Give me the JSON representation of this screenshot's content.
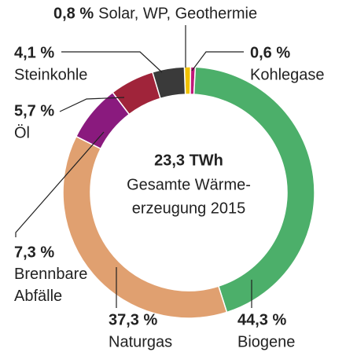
{
  "chart_data": {
    "type": "donut",
    "center_text": [
      "23,3 TWh",
      "Gesamte Wärme-",
      "erzeugung 2015"
    ],
    "categories": [
      "Solar, WP, Geothermie",
      "Kohlegase",
      "Biogene",
      "Naturgas",
      "Brennbare Abfälle",
      "Öl",
      "Steinkohle"
    ],
    "values": [
      0.8,
      0.6,
      44.3,
      37.3,
      7.3,
      5.7,
      4.1
    ],
    "value_labels": [
      "0,8 %",
      "0,6 %",
      "44,3 %",
      "37,3 %",
      "7,3 %",
      "5,7 %",
      "4,1 %"
    ],
    "colors": [
      "#f2c200",
      "#c0187a",
      "#4caf6a",
      "#e0a070",
      "#8a1a7e",
      "#a0243a",
      "#3a3a3a"
    ]
  }
}
